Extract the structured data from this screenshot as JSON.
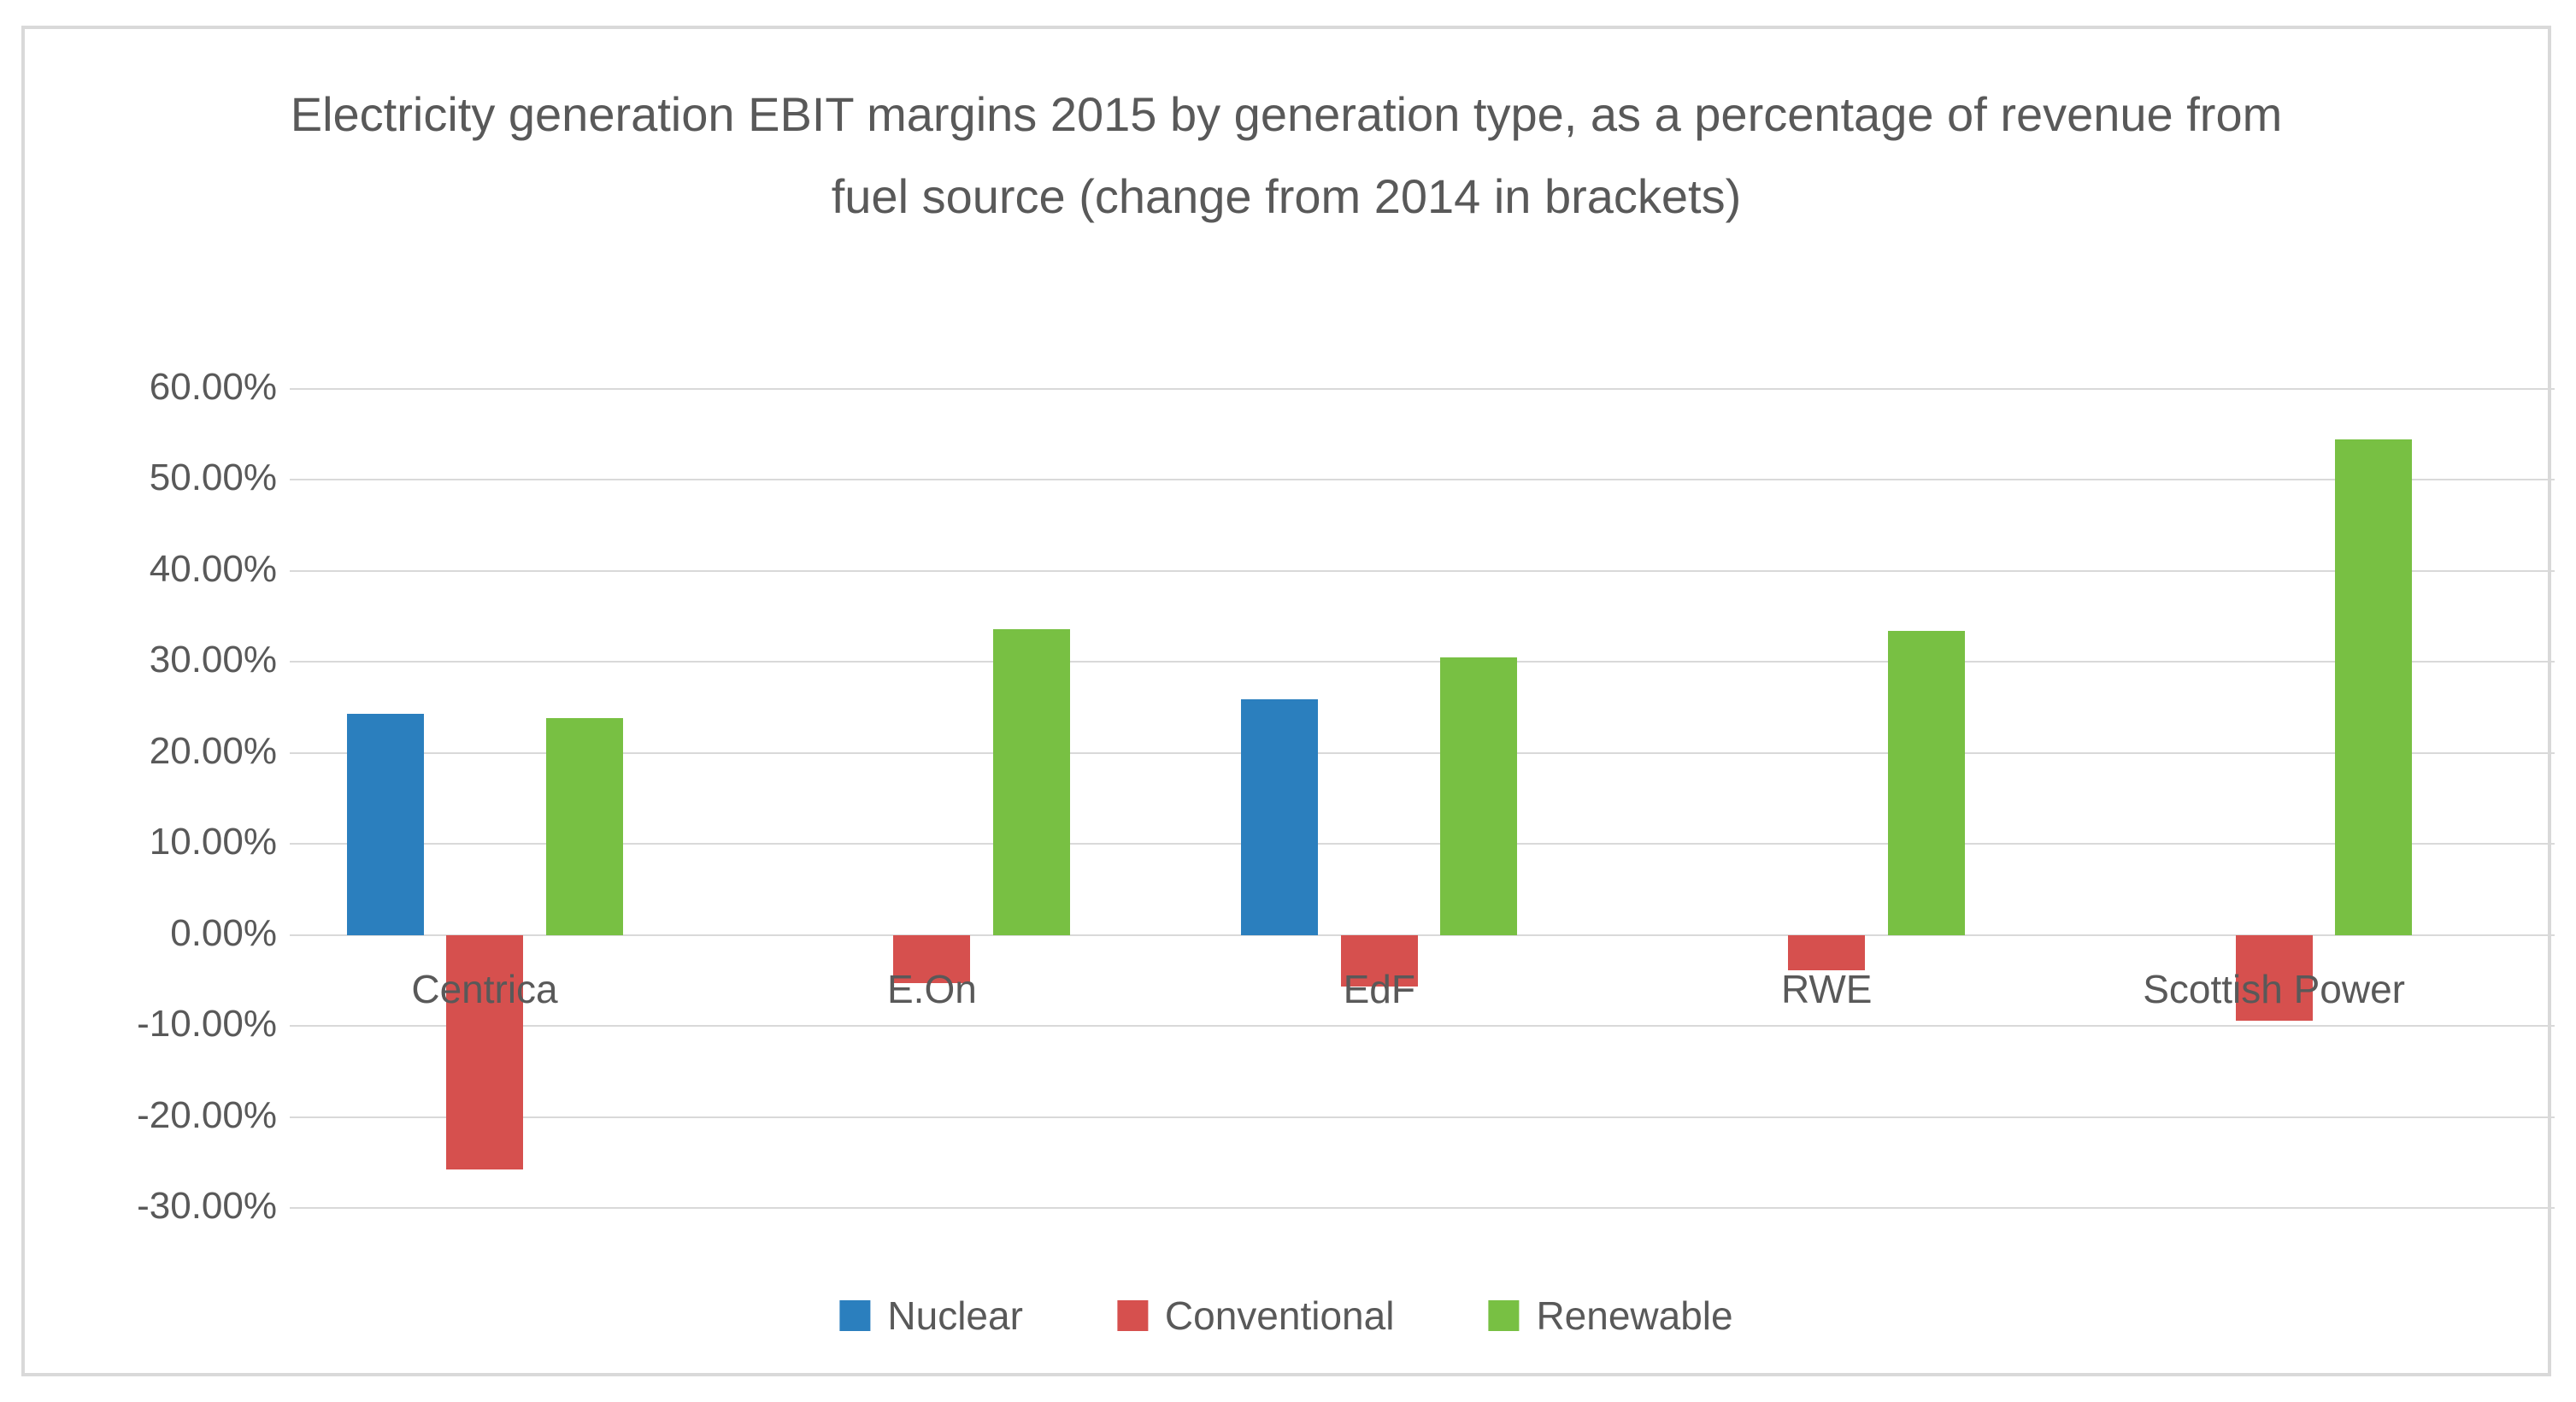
{
  "chart_data": {
    "type": "bar",
    "title": "Electricity generation EBIT margins 2015 by generation type, as a percentage of revenue from fuel source (change from 2014 in brackets)",
    "categories": [
      "Centrica",
      "E.On",
      "EdF",
      "RWE",
      "Scottish Power"
    ],
    "series": [
      {
        "name": "Nuclear",
        "color": "#2b7fbe",
        "values": [
          24.3,
          null,
          25.9,
          null,
          null
        ]
      },
      {
        "name": "Conventional",
        "color": "#d6504e",
        "values": [
          -25.8,
          -5.3,
          -5.7,
          -3.9,
          -9.4
        ]
      },
      {
        "name": "Renewable",
        "color": "#78c043",
        "values": [
          23.8,
          33.6,
          30.5,
          33.4,
          54.5
        ]
      }
    ],
    "y_axis": {
      "unit": "%",
      "min": -30,
      "max": 60,
      "step": 10,
      "tick_labels": [
        "60.00%",
        "50.00%",
        "40.00%",
        "30.00%",
        "20.00%",
        "10.00%",
        "0.00%",
        "-10.00%",
        "-20.00%",
        "-30.00%"
      ]
    },
    "grid": true,
    "legend_position": "bottom",
    "colors": {
      "text": "#595959",
      "gridline": "#d9d9d9",
      "frame_border": "#d9d9d9",
      "background": "#ffffff"
    }
  }
}
